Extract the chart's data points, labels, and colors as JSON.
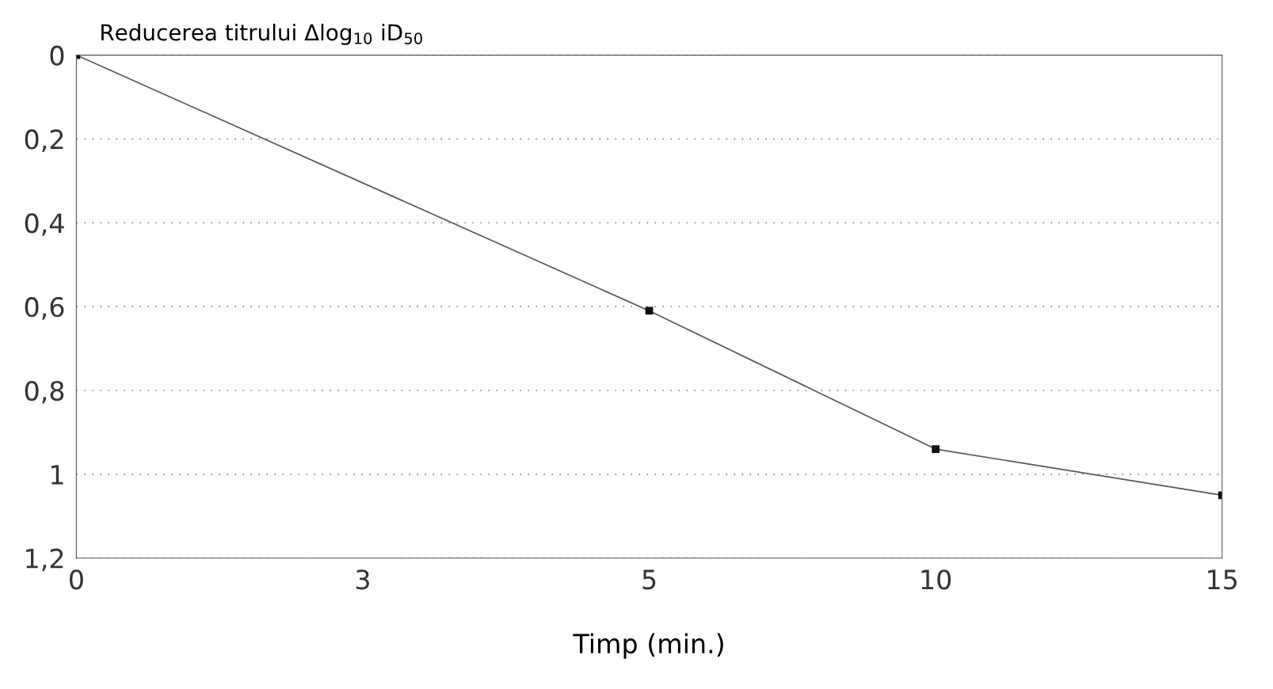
{
  "chart_data": {
    "type": "line",
    "ylabel": "Reducerea titrului Δlog$_{10}$ iD$_{50}$",
    "xlabel": "Timp (min.)",
    "categories": [
      "0",
      "3",
      "5",
      "10",
      "15"
    ],
    "series": [
      {
        "x": [
          "0",
          "5",
          "10",
          "15"
        ],
        "values": [
          0,
          0.61,
          0.94,
          1.05
        ],
        "color": "#555555"
      }
    ],
    "ylim": [
      1.2,
      0
    ],
    "yticks": [
      0,
      {
        "value": 0.2,
        "label": "0,2"
      },
      {
        "value": 0.4,
        "label": "0,4"
      },
      {
        "value": 0.6,
        "label": "0,6"
      },
      {
        "value": 0.8,
        "label": "0,8"
      },
      1,
      {
        "value": 1.2,
        "label": "1,2"
      }
    ],
    "grid": "y",
    "marker": "square",
    "line_style": "solid"
  }
}
